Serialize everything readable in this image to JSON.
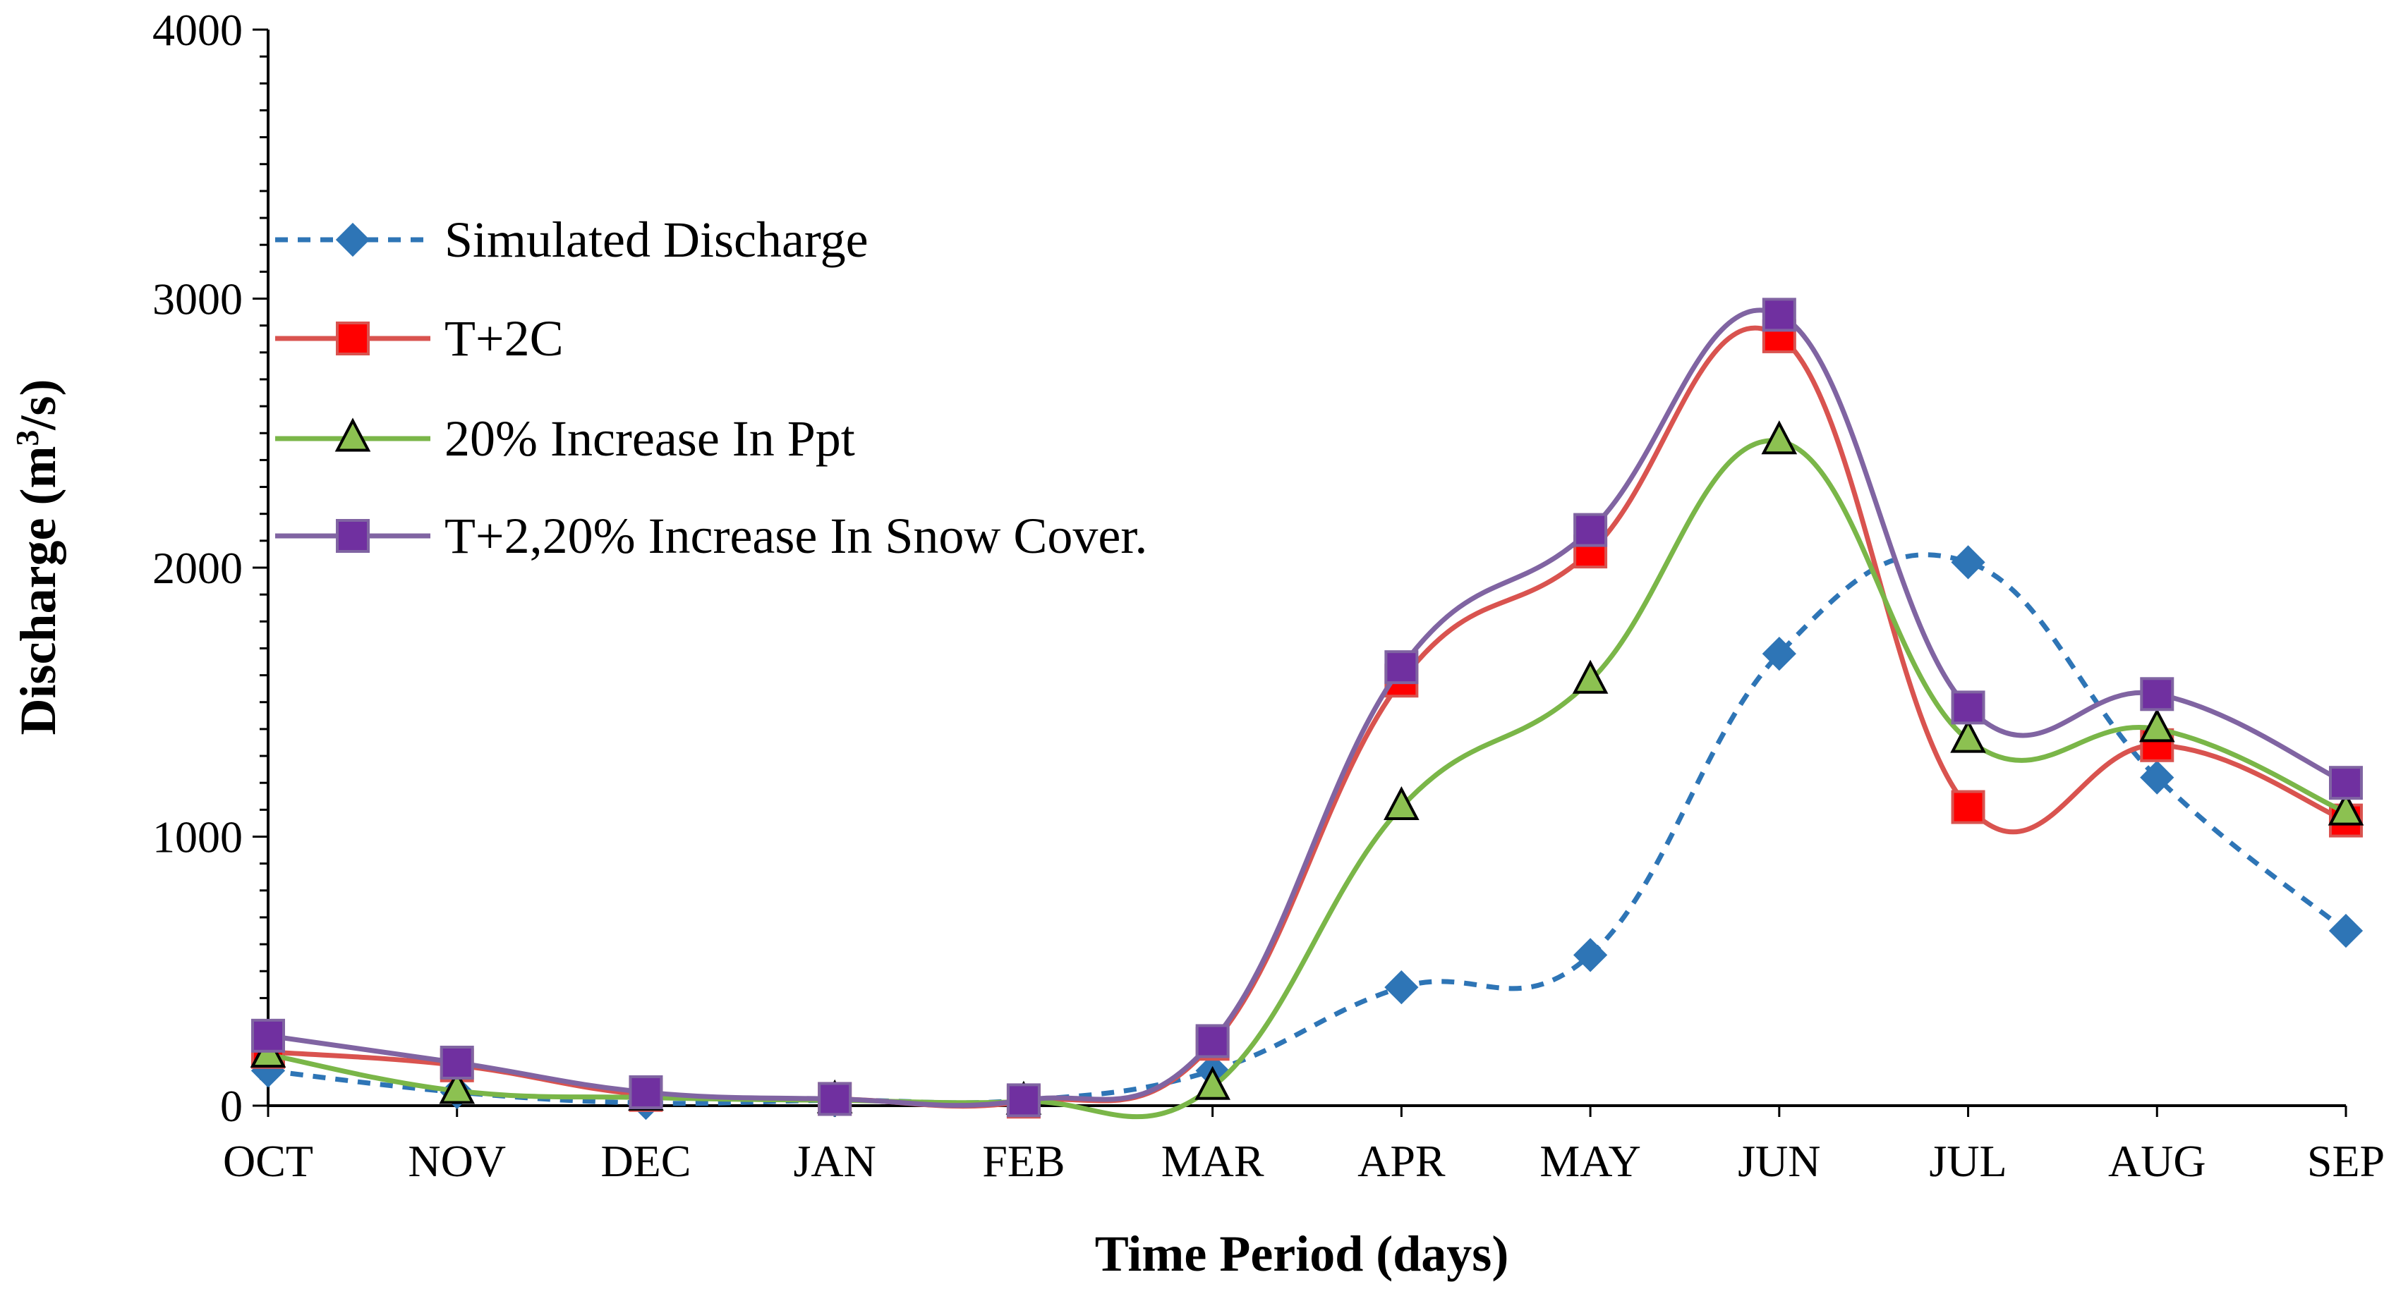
{
  "chart_data": {
    "type": "line",
    "title": "",
    "xlabel": "Time Period (days)",
    "ylabel_main": "Discharge (m",
    "ylabel_sup": "3",
    "ylabel_tail": "/s)",
    "ylim": [
      0,
      4000
    ],
    "yticks": [
      "0",
      "1000",
      "2000",
      "3000",
      "4000"
    ],
    "categories": [
      "OCT",
      "NOV",
      "DEC",
      "JAN",
      "FEB",
      "MAR",
      "APR",
      "MAY",
      "JUN",
      "JUL",
      "AUG",
      "SEP"
    ],
    "legend_position": "upper-left",
    "series": [
      {
        "name": "Simulated Discharge",
        "color": "#2E75B6",
        "marker": "diamond",
        "dashed": true,
        "values": [
          130,
          50,
          10,
          20,
          20,
          130,
          440,
          560,
          1680,
          2020,
          1220,
          650
        ]
      },
      {
        "name": "T+2C",
        "color": "#D9534F",
        "marker_fill": "#FF0000",
        "marker": "square",
        "dashed": false,
        "values": [
          200,
          150,
          40,
          25,
          15,
          230,
          1580,
          2060,
          2860,
          1110,
          1340,
          1060
        ]
      },
      {
        "name": "20% Increase In Ppt",
        "color": "#7AB648",
        "marker_fill": "#8CC151",
        "marker": "triangle",
        "dashed": false,
        "values": [
          190,
          55,
          30,
          20,
          15,
          70,
          1110,
          1580,
          2470,
          1360,
          1400,
          1090
        ]
      },
      {
        "name": "T+2,20% Increase In Snow Cover.",
        "color": "#8064A2",
        "marker_fill": "#7030A0",
        "marker": "square",
        "dashed": false,
        "values": [
          260,
          160,
          50,
          25,
          20,
          240,
          1630,
          2140,
          2940,
          1480,
          1530,
          1200
        ]
      }
    ]
  }
}
